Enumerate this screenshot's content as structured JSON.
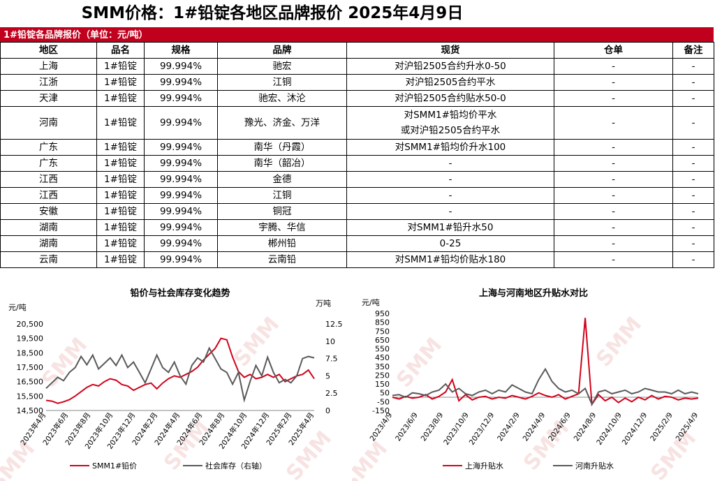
{
  "page_title": "SMM价格：1#铅锭各地区品牌报价 2025年4月9日",
  "table": {
    "banner": "1#铅锭各品牌报价（单位：元/吨）",
    "headers": [
      "地区",
      "品名",
      "规格",
      "品牌",
      "现货",
      "仓单",
      "备注"
    ],
    "rows": [
      {
        "region": "上海",
        "product": "1#铅锭",
        "spec": "99.994%",
        "brand": "驰宏",
        "spot": "对沪铅2505合约升水0-50",
        "warrant": "-",
        "note": "-"
      },
      {
        "region": "江浙",
        "product": "1#铅锭",
        "spec": "99.994%",
        "brand": "江铜",
        "spot": "对沪铅2505合约平水",
        "warrant": "-",
        "note": "-"
      },
      {
        "region": "天津",
        "product": "1#铅锭",
        "spec": "99.994%",
        "brand": "驰宏、沐沦",
        "spot": "对沪铅2505合约贴水50-0",
        "warrant": "-",
        "note": "-"
      },
      {
        "region": "河南",
        "product": "1#铅锭",
        "spec": "99.994%",
        "brand": "豫光、济金、万洋",
        "spot": "对SMM1#铅均价平水",
        "spot2": "或对沪铅2505合约平水",
        "warrant": "-",
        "note": "-"
      },
      {
        "region": "广东",
        "product": "1#铅锭",
        "spec": "99.994%",
        "brand": "南华（丹霞）",
        "spot": "对SMM1#铅均价升水100",
        "warrant": "-",
        "note": "-"
      },
      {
        "region": "广东",
        "product": "1#铅锭",
        "spec": "99.994%",
        "brand": "南华（韶冶）",
        "spot": "-",
        "warrant": "-",
        "note": "-"
      },
      {
        "region": "江西",
        "product": "1#铅锭",
        "spec": "99.994%",
        "brand": "金德",
        "spot": "-",
        "warrant": "-",
        "note": "-"
      },
      {
        "region": "江西",
        "product": "1#铅锭",
        "spec": "99.994%",
        "brand": "江铜",
        "spot": "-",
        "warrant": "-",
        "note": "-"
      },
      {
        "region": "安徽",
        "product": "1#铅锭",
        "spec": "99.994%",
        "brand": "铜冠",
        "spot": "-",
        "warrant": "-",
        "note": "-"
      },
      {
        "region": "湖南",
        "product": "1#铅锭",
        "spec": "99.994%",
        "brand": "宇腾、华信",
        "spot": "对SMM1#铅升水50",
        "warrant": "-",
        "note": "-"
      },
      {
        "region": "湖南",
        "product": "1#铅锭",
        "spec": "99.994%",
        "brand": "郴州铅",
        "spot": "0-25",
        "warrant": "-",
        "note": "-"
      },
      {
        "region": "云南",
        "product": "1#铅锭",
        "spec": "99.994%",
        "brand": "云南铅",
        "spot": "对SMM1#铅均价贴水180",
        "warrant": "-",
        "note": "-"
      }
    ]
  },
  "watermark": "SMM",
  "chart_data": [
    {
      "type": "line",
      "title": "铅价与社会库存变化趋势",
      "ylabel_left": "元/吨",
      "ylabel_right": "万吨",
      "ylim_left": [
        14500,
        20500
      ],
      "yticks_left": [
        "20,500",
        "19,500",
        "18,500",
        "17,500",
        "16,500",
        "15,500",
        "14,500"
      ],
      "ylim_right": [
        0,
        12.5
      ],
      "yticks_right": [
        "12.5",
        "10",
        "7.5",
        "5",
        "2.5",
        "0"
      ],
      "xticks": [
        "2023年4月",
        "2023年6月",
        "2023年8月",
        "2023年10月",
        "2023年12月",
        "2024年2月",
        "2024年4月",
        "2024年6月",
        "2024年8月",
        "2024年10月",
        "2024年12月",
        "2025年2月",
        "2025年4月"
      ],
      "legend_position": "bottom",
      "series": [
        {
          "name": "SMM1#铅价",
          "axis": "left",
          "color": "#d0021b",
          "values": [
            15200,
            15150,
            15000,
            15100,
            15250,
            15500,
            15800,
            16100,
            16300,
            16200,
            16500,
            16700,
            16600,
            16300,
            16200,
            15900,
            16100,
            16300,
            16400,
            16000,
            16400,
            16700,
            16900,
            16800,
            17000,
            17200,
            17500,
            18000,
            18400,
            18800,
            19500,
            19400,
            18200,
            17200,
            16800,
            17000,
            16700,
            16800,
            17000,
            16800,
            17000,
            16500,
            16700,
            16900,
            17000,
            17300,
            16700
          ]
        },
        {
          "name": "社会库存（右轴）",
          "axis": "right",
          "color": "#595959",
          "values": [
            3.2,
            4.0,
            4.8,
            4.3,
            5.5,
            6.2,
            7.8,
            6.6,
            8.0,
            6.0,
            6.8,
            7.6,
            6.5,
            8.0,
            6.2,
            7.0,
            5.5,
            4.0,
            6.0,
            8.0,
            6.2,
            5.5,
            7.0,
            5.0,
            3.8,
            6.5,
            7.6,
            7.0,
            9.0,
            7.5,
            6.0,
            5.5,
            3.8,
            5.5,
            1.5,
            4.2,
            6.5,
            5.0,
            7.7,
            5.5,
            4.0,
            4.5,
            4.0,
            5.0,
            7.5,
            7.8,
            7.6
          ]
        }
      ]
    },
    {
      "type": "line",
      "title": "上海与河南地区升贴水对比",
      "ylabel": "元/吨",
      "ylim": [
        -150,
        950
      ],
      "yticks": [
        "950",
        "850",
        "750",
        "650",
        "550",
        "450",
        "350",
        "250",
        "150",
        "50",
        "-50",
        "-150"
      ],
      "xticks": [
        "2023/4/9",
        "2023/6/9",
        "2023/8/9",
        "2023/10/9",
        "2023/12/9",
        "2024/2/9",
        "2024/4/9",
        "2024/6/9",
        "2024/8/9",
        "2024/10/9",
        "2024/12/9",
        "2025/2/9",
        "2025/4/9"
      ],
      "legend_position": "bottom",
      "series": [
        {
          "name": "上海升贴水",
          "color": "#d0021b",
          "values": [
            0,
            -20,
            10,
            -10,
            0,
            30,
            -20,
            10,
            60,
            200,
            -40,
            30,
            -30,
            0,
            10,
            -20,
            0,
            -10,
            20,
            0,
            -20,
            10,
            50,
            20,
            0,
            30,
            -20,
            10,
            40,
            900,
            -80,
            30,
            -40,
            0,
            -60,
            -10,
            -50,
            0,
            -30,
            20,
            -20,
            10,
            0,
            -30,
            -10,
            -20,
            -10
          ]
        },
        {
          "name": "河南升贴水",
          "color": "#595959",
          "values": [
            20,
            30,
            0,
            50,
            40,
            20,
            60,
            80,
            150,
            60,
            100,
            40,
            20,
            60,
            80,
            40,
            80,
            60,
            140,
            100,
            60,
            40,
            200,
            320,
            180,
            100,
            60,
            80,
            40,
            100,
            -80,
            60,
            80,
            40,
            60,
            80,
            40,
            60,
            100,
            80,
            60,
            60,
            40,
            80,
            40,
            60,
            40
          ]
        }
      ]
    }
  ]
}
